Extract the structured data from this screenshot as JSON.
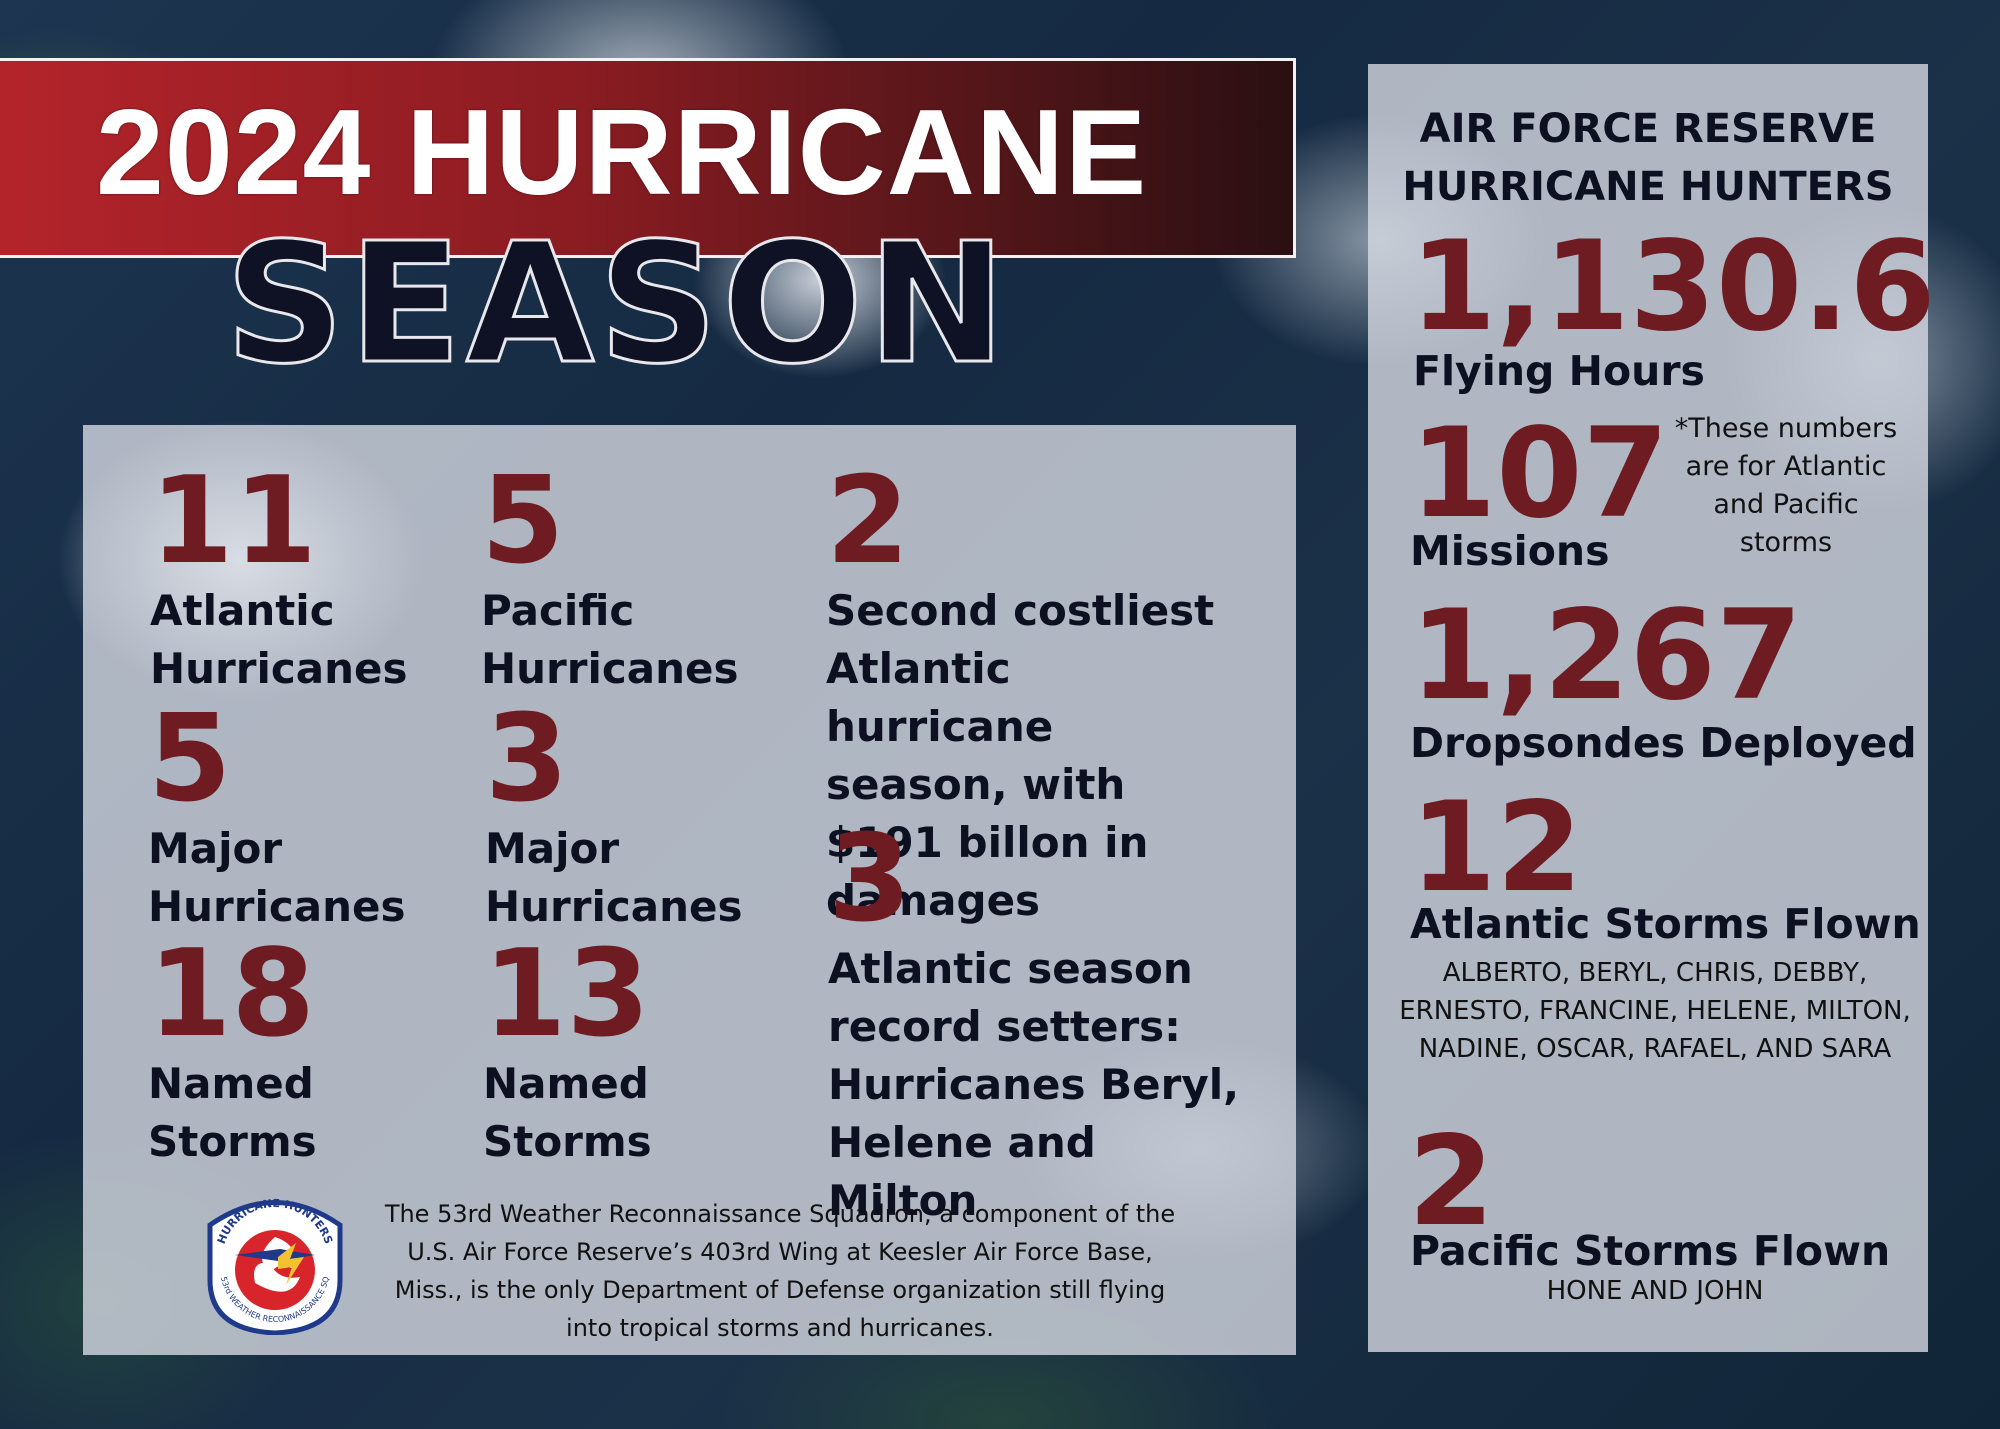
{
  "title": {
    "line1": "2024 HURRICANE",
    "line2": "SEASON"
  },
  "left_panel": {
    "atlantic_hurricanes": {
      "number": "11",
      "label": "Atlantic Hurricanes"
    },
    "pacific_hurricanes": {
      "number": "5",
      "label": "Pacific Hurricanes"
    },
    "costliest": {
      "number": "2",
      "label": "Second costliest Atlantic hurricane season, with $191 billon in damages"
    },
    "atlantic_major": {
      "number": "5",
      "label": "Major Hurricanes"
    },
    "pacific_major": {
      "number": "3",
      "label": "Major Hurricanes"
    },
    "record_setters": {
      "number": "3",
      "label": "Atlantic season record setters: Hurricanes Beryl, Helene and Milton"
    },
    "atlantic_named": {
      "number": "18",
      "label": "Named Storms"
    },
    "pacific_named": {
      "number": "13",
      "label": "Named Storms"
    },
    "footer_text": "The 53rd Weather Reconnaissance Squadron, a component of the U.S. Air Force Reserve’s 403rd Wing at Keesler Air Force Base, Miss., is the only Department of Defense organization still flying into tropical storms and hurricanes.",
    "logo": {
      "top_text": "HURRICANE HUNTERS",
      "bottom_text": "53rd WEATHER RECONNAISSANCE SQ",
      "icon": "hurricane-hunters-emblem"
    }
  },
  "right_panel": {
    "header": "AIR FORCE RESERVE HURRICANE HUNTERS",
    "flying_hours": {
      "number": "1,130.6",
      "label": "Flying Hours"
    },
    "missions": {
      "number": "107",
      "label": "Missions"
    },
    "note": "*These numbers are for Atlantic and Pacific storms",
    "dropsondes": {
      "number": "1,267",
      "label": "Dropsondes Deployed"
    },
    "atlantic_storms": {
      "number": "12",
      "label": "Atlantic Storms Flown",
      "names": "ALBERTO, BERYL, CHRIS, DEBBY, ERNESTO, FRANCINE, HELENE, MILTON, NADINE, OSCAR, RAFAEL, AND SARA"
    },
    "pacific_storms": {
      "number": "2",
      "label": "Pacific Storms Flown",
      "names": "HONE AND JOHN"
    }
  },
  "colors": {
    "accent_red": "#6e1c21",
    "banner_red": "#b3242a",
    "navy_text": "#0d1020",
    "panel_bg": "#d6dae2"
  }
}
